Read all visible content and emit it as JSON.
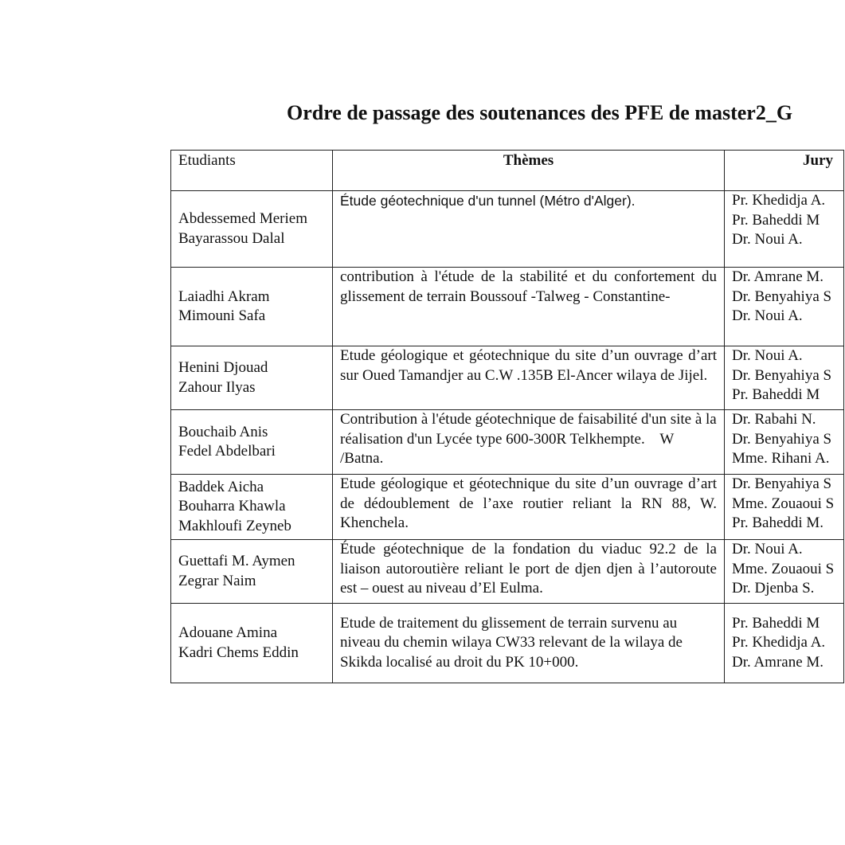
{
  "title": "Ordre de passage des soutenances des PFE de master2_G",
  "headers": {
    "students": "Etudiants",
    "themes": "Thèmes",
    "jury": "Jury"
  },
  "rows": [
    {
      "students": [
        "Abdessemed Meriem",
        "Bayarassou Dalal"
      ],
      "theme": "Étude géotechnique d'un tunnel (Métro d'Alger).",
      "jury": [
        "Pr. Khedidja A.",
        "Pr. Baheddi M",
        "Dr. Noui A."
      ]
    },
    {
      "students": [
        "Laiadhi Akram",
        "Mimouni Safa"
      ],
      "theme": "contribution à l'étude de la stabilité et du confortement du glissement de terrain Boussouf -Talweg - Constantine-",
      "jury": [
        "Dr. Amrane M.",
        "Dr. Benyahiya S",
        "Dr. Noui A."
      ]
    },
    {
      "students": [
        "Henini Djouad",
        "Zahour Ilyas"
      ],
      "theme": "Etude géologique et géotechnique du site d’un ouvrage d’art sur Oued Tamandjer au C.W .135B El-Ancer wilaya de Jijel.",
      "jury": [
        "Dr. Noui A.",
        "Dr. Benyahiya S",
        "Pr. Baheddi M"
      ]
    },
    {
      "students": [
        "Bouchaib Anis",
        "Fedel Abdelbari"
      ],
      "theme": "Contribution à l'étude géotechnique de faisabilité d'un site à la réalisation d'un Lycée type 600-300R Telkhempte.    W /Batna.",
      "jury": [
        "Dr. Rabahi N.",
        "Dr. Benyahiya S",
        "Mme. Rihani A."
      ]
    },
    {
      "students": [
        "Baddek Aicha",
        "Bouharra Khawla",
        "Makhloufi Zeyneb"
      ],
      "theme": "Etude géologique et géotechnique du site d’un ouvrage d’art de dédoublement de l’axe routier reliant la RN 88,  W. Khenchela.",
      "jury": [
        "Dr. Benyahiya S",
        "Mme. Zouaoui S",
        "Pr. Baheddi M."
      ]
    },
    {
      "students": [
        "Guettafi M. Aymen",
        "Zegrar Naim"
      ],
      "theme": "Étude géotechnique de la fondation du viaduc 92.2 de la liaison autoroutière reliant le port de djen djen à l’autoroute est – ouest au niveau d’El Eulma.",
      "jury": [
        "Dr. Noui A.",
        "Mme. Zouaoui S",
        "Dr. Djenba S."
      ]
    },
    {
      "students": [
        "Adouane Amina",
        "Kadri Chems Eddin"
      ],
      "theme": "Etude de traitement du glissement de terrain survenu au niveau du chemin wilaya CW33 relevant de la wilaya de Skikda localisé au droit du PK 10+000.",
      "jury": [
        "Pr. Baheddi M",
        "Pr. Khedidja A.",
        "Dr. Amrane M."
      ]
    }
  ]
}
